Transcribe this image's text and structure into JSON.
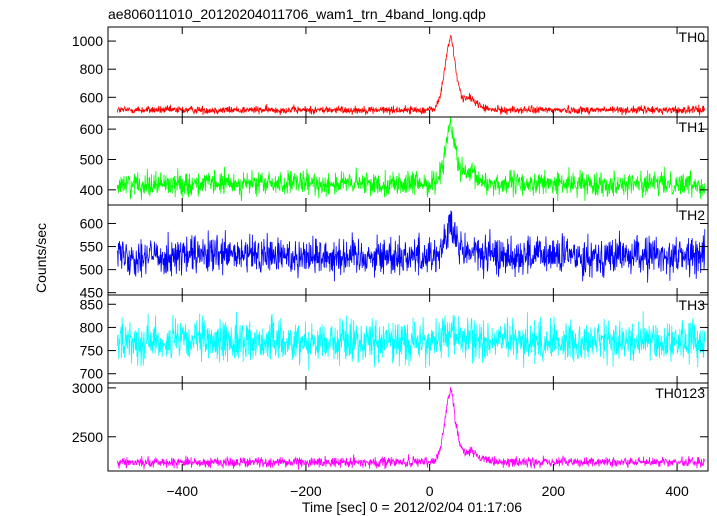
{
  "title": "ae806011010_20120204011706_wam1_trn_4band_long.qdp",
  "ylabel": "Counts/sec",
  "xlabel": "Time [sec] 0 = 2012/02/04 01:17:06",
  "chart_data": [
    {
      "type": "line",
      "panel_label": "TH0",
      "color": "#ff0000",
      "ylim": [
        460,
        1100
      ],
      "yticks": [
        600,
        800,
        1000
      ],
      "baseline": 510,
      "noise": 20,
      "peak": 1030,
      "peak_time": 35,
      "xlim": [
        -520,
        450
      ]
    },
    {
      "type": "line",
      "panel_label": "TH1",
      "color": "#00ff00",
      "ylim": [
        350,
        640
      ],
      "yticks": [
        400,
        500,
        600
      ],
      "baseline": 420,
      "noise": 28,
      "peak": 610,
      "peak_time": 35,
      "xlim": [
        -520,
        450
      ]
    },
    {
      "type": "line",
      "panel_label": "TH2",
      "color": "#0000ff",
      "ylim": [
        445,
        640
      ],
      "yticks": [
        450,
        500,
        550,
        600
      ],
      "baseline": 530,
      "noise": 30,
      "peak": 590,
      "peak_time": 35,
      "xlim": [
        -520,
        450
      ]
    },
    {
      "type": "line",
      "panel_label": "TH3",
      "color": "#00ffff",
      "ylim": [
        680,
        870
      ],
      "yticks": [
        700,
        750,
        800,
        850
      ],
      "baseline": 770,
      "noise": 32,
      "peak": 790,
      "peak_time": 35,
      "xlim": [
        -520,
        450
      ]
    },
    {
      "type": "line",
      "panel_label": "TH0123",
      "color": "#ff00ff",
      "ylim": [
        2150,
        3050
      ],
      "yticks": [
        2500,
        3000
      ],
      "baseline": 2240,
      "noise": 38,
      "peak": 2980,
      "peak_time": 35,
      "xlim": [
        -520,
        450
      ]
    }
  ],
  "xticks": [
    -400,
    -200,
    0,
    200,
    400
  ]
}
